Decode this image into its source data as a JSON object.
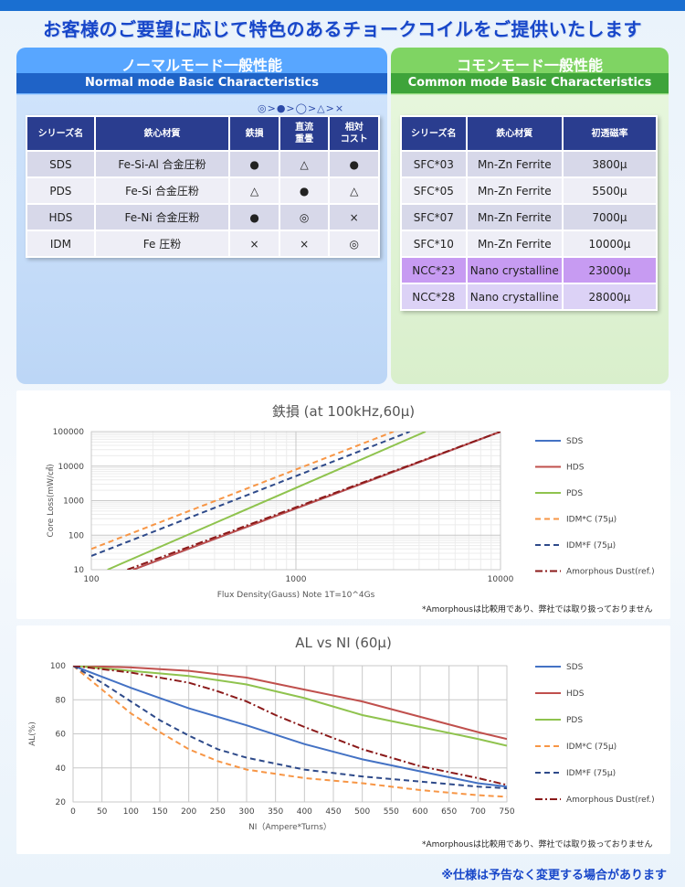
{
  "headline": "お客様のご要望に応じて特色のあるチョークコイルをご提供いたします",
  "normal_panel": {
    "title": "ノーマルモード一般性能",
    "subtitle": "Normal mode Basic Characteristics",
    "legend": "◎>●>◯>△>×",
    "headers": [
      "シリーズ名",
      "鉄心材質",
      "鉄損",
      "直流\n重畳",
      "相対\nコスト"
    ],
    "rows": [
      [
        "SDS",
        "Fe-Si-Al 合金圧粉",
        "●",
        "△",
        "●"
      ],
      [
        "PDS",
        "Fe-Si 合金圧粉",
        "△",
        "●",
        "△"
      ],
      [
        "HDS",
        "Fe-Ni 合金圧粉",
        "●",
        "◎",
        "×"
      ],
      [
        "IDM",
        "Fe 圧粉",
        "×",
        "×",
        "◎"
      ]
    ]
  },
  "common_panel": {
    "title": "コモンモード一般性能",
    "subtitle": "Common mode Basic Characteristics",
    "headers": [
      "シリーズ名",
      "鉄心材質",
      "初透磁率"
    ],
    "rows": [
      [
        "SFC*03",
        "Mn-Zn Ferrite",
        "3800μ"
      ],
      [
        "SFC*05",
        "Mn-Zn Ferrite",
        "5500μ"
      ],
      [
        "SFC*07",
        "Mn-Zn Ferrite",
        "7000μ"
      ],
      [
        "SFC*10",
        "Mn-Zn Ferrite",
        "10000μ"
      ],
      [
        "NCC*23",
        "Nano crystalline",
        "23000μ"
      ],
      [
        "NCC*28",
        "Nano crystalline",
        "28000μ"
      ]
    ]
  },
  "colors": {
    "SDS": "#4472c4",
    "HDS": "#c0504d",
    "PDS": "#8fc34e",
    "IDMC": "#f79646",
    "IDMF": "#2e4a8a",
    "Amorphous": "#8b1a1a"
  },
  "chart_data": [
    {
      "type": "line",
      "title": "鉄損 (at 100kHz,60μ)",
      "xlabel": "Flux Density(Gauss) Note 1T=10^4Gs",
      "ylabel": "Core Loss(mW/㎤)",
      "xscale": "log",
      "yscale": "log",
      "xlim": [
        100,
        10000
      ],
      "ylim": [
        10,
        100000
      ],
      "xticks": [
        "100",
        "1000",
        "10000"
      ],
      "yticks": [
        "10",
        "100",
        "1000",
        "10000",
        "100000"
      ],
      "note": "*Amorphousは比較用であり、弊社では取り扱っておりません",
      "series": [
        {
          "name": "SDS",
          "x": [
            160,
            10000
          ],
          "y": [
            10,
            100000
          ]
        },
        {
          "name": "HDS",
          "x": [
            160,
            10000
          ],
          "y": [
            10,
            100000
          ]
        },
        {
          "name": "PDS",
          "x": [
            120,
            4300
          ],
          "y": [
            10,
            100000
          ]
        },
        {
          "name": "IDM*C (75μ)",
          "x": [
            100,
            3000
          ],
          "y": [
            40,
            100000
          ]
        },
        {
          "name": "IDM*F (75μ)",
          "x": [
            100,
            3600
          ],
          "y": [
            25,
            100000
          ]
        },
        {
          "name": "Amorphous Dust(ref.)",
          "x": [
            150,
            10000
          ],
          "y": [
            10,
            100000
          ]
        }
      ]
    },
    {
      "type": "line",
      "title": "AL vs NI (60μ)",
      "xlabel": "NI（Ampere*Turns）",
      "ylabel": "AL(%)",
      "xlim": [
        0,
        750
      ],
      "ylim": [
        20,
        100
      ],
      "xticks": [
        "0",
        "50",
        "100",
        "150",
        "200",
        "250",
        "300",
        "350",
        "400",
        "450",
        "500",
        "550",
        "600",
        "650",
        "700",
        "750"
      ],
      "yticks": [
        "20",
        "40",
        "60",
        "80",
        "100"
      ],
      "note": "*Amorphousは比較用であり、弊社では取り扱っておりません",
      "series": [
        {
          "name": "SDS",
          "x": [
            0,
            100,
            200,
            300,
            400,
            500,
            600,
            700,
            750
          ],
          "y": [
            100,
            87,
            75,
            65,
            54,
            45,
            38,
            31,
            29
          ]
        },
        {
          "name": "HDS",
          "x": [
            0,
            100,
            200,
            300,
            400,
            500,
            600,
            700,
            750
          ],
          "y": [
            100,
            99,
            97,
            93,
            86,
            79,
            70,
            61,
            57
          ]
        },
        {
          "name": "PDS",
          "x": [
            0,
            100,
            200,
            300,
            400,
            500,
            600,
            700,
            750
          ],
          "y": [
            100,
            97,
            94,
            89,
            81,
            71,
            64,
            57,
            53
          ]
        },
        {
          "name": "IDM*C (75μ)",
          "x": [
            0,
            50,
            100,
            150,
            200,
            250,
            300,
            400,
            500,
            600,
            700,
            750
          ],
          "y": [
            100,
            86,
            72,
            61,
            51,
            44,
            39,
            34,
            31,
            27,
            24,
            23
          ]
        },
        {
          "name": "IDM*F (75μ)",
          "x": [
            0,
            50,
            100,
            150,
            200,
            250,
            300,
            400,
            500,
            600,
            700,
            750
          ],
          "y": [
            100,
            90,
            79,
            68,
            59,
            51,
            46,
            39,
            35,
            32,
            29,
            28
          ]
        },
        {
          "name": "Amorphous Dust(ref.)",
          "x": [
            0,
            100,
            200,
            250,
            300,
            350,
            400,
            500,
            600,
            700,
            750
          ],
          "y": [
            100,
            96,
            90,
            85,
            79,
            71,
            64,
            51,
            41,
            34,
            30
          ]
        }
      ]
    }
  ],
  "footer": "※仕様は予告なく変更する場合があります"
}
